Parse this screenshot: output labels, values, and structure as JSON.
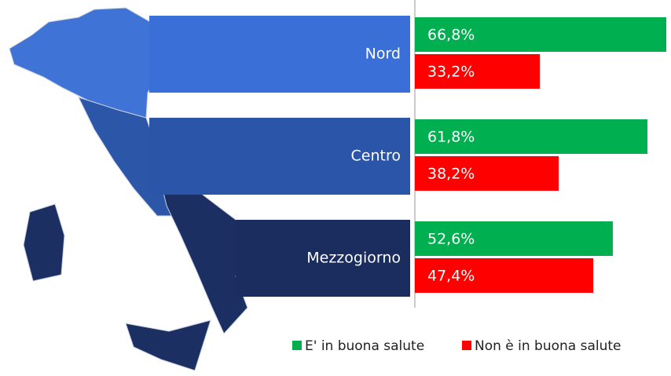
{
  "chart_data": {
    "type": "bar",
    "categories": [
      "Nord",
      "Centro",
      "Mezzogiorno"
    ],
    "series": [
      {
        "name": "E' in buona salute",
        "color": "#00b050",
        "values": [
          66.8,
          61.8,
          52.6
        ],
        "value_labels": [
          "66,8%",
          "61,8%",
          "52,6%"
        ]
      },
      {
        "name": "Non è in buona salute",
        "color": "#ff0000",
        "values": [
          33.2,
          38.2,
          47.4
        ],
        "value_labels": [
          "33,2%",
          "38,2%",
          "47,4%"
        ]
      }
    ]
  }
}
